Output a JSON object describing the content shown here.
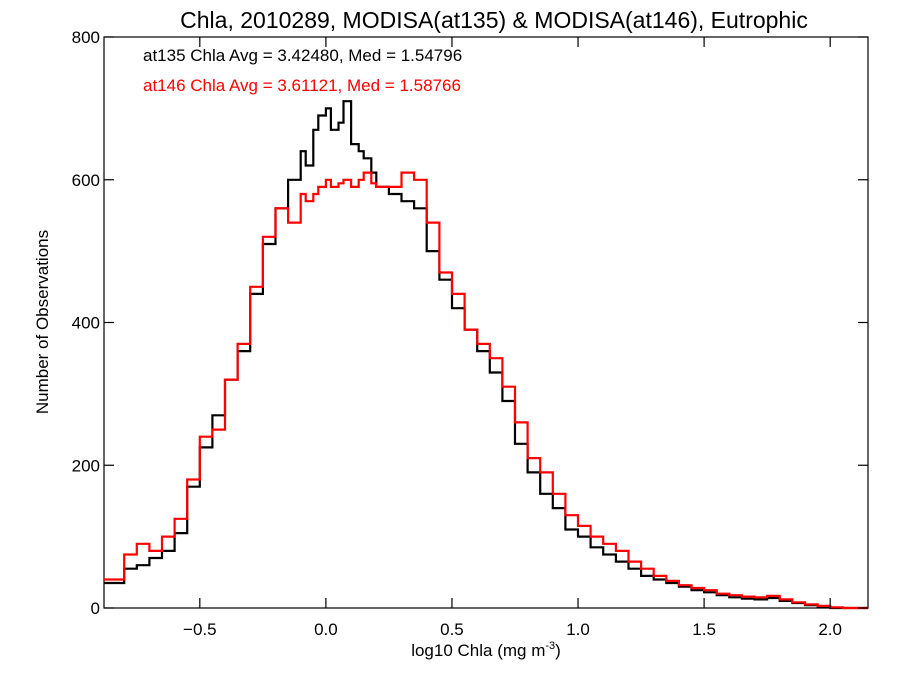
{
  "chart_data": {
    "type": "histogram",
    "title": "Chla, 2010289, MODISA(at135) & MODISA(at146), Eutrophic",
    "xlabel": "log10 Chla (mg m",
    "xlabel_sup": "-3",
    "xlabel_close": ")",
    "ylabel": "Number of Observations",
    "xlim": [
      -0.88,
      2.15
    ],
    "ylim": [
      0,
      800
    ],
    "grid": false,
    "xticks": [
      -0.5,
      0.0,
      0.5,
      1.0,
      1.5,
      2.0
    ],
    "xtick_labels": [
      "−0.5",
      "0.0",
      "0.5",
      "1.0",
      "1.5",
      "2.0"
    ],
    "yticks": [
      0,
      200,
      400,
      600,
      800
    ],
    "ytick_labels": [
      "0",
      "200",
      "400",
      "600",
      "800"
    ],
    "annotations": [
      {
        "text": "at135 Chla Avg = 3.42480, Med = 1.54796",
        "color": "#000000"
      },
      {
        "text": "at146 Chla Avg = 3.61121, Med = 1.58766",
        "color": "#ff0000"
      }
    ],
    "series": [
      {
        "color": "#000000",
        "x": [
          -0.88,
          -0.8,
          -0.75,
          -0.7,
          -0.65,
          -0.6,
          -0.55,
          -0.5,
          -0.45,
          -0.4,
          -0.35,
          -0.3,
          -0.25,
          -0.2,
          -0.15,
          -0.1,
          -0.08,
          -0.05,
          -0.03,
          0.0,
          0.02,
          0.05,
          0.07,
          0.1,
          0.13,
          0.15,
          0.18,
          0.2,
          0.25,
          0.3,
          0.35,
          0.4,
          0.45,
          0.5,
          0.55,
          0.6,
          0.65,
          0.7,
          0.75,
          0.8,
          0.85,
          0.9,
          0.95,
          1.0,
          1.05,
          1.1,
          1.15,
          1.2,
          1.25,
          1.3,
          1.35,
          1.4,
          1.45,
          1.5,
          1.55,
          1.6,
          1.65,
          1.7,
          1.75,
          1.8,
          1.85,
          1.9,
          1.95,
          2.0,
          2.05,
          2.1
        ],
        "y": [
          35,
          55,
          60,
          70,
          80,
          105,
          170,
          225,
          270,
          320,
          360,
          440,
          510,
          560,
          600,
          640,
          620,
          670,
          690,
          700,
          670,
          680,
          710,
          650,
          640,
          630,
          610,
          590,
          580,
          570,
          560,
          500,
          460,
          420,
          390,
          360,
          330,
          290,
          230,
          190,
          160,
          140,
          110,
          100,
          85,
          75,
          65,
          55,
          45,
          40,
          35,
          30,
          25,
          22,
          18,
          15,
          13,
          12,
          14,
          10,
          7,
          4,
          2,
          0,
          0,
          0
        ]
      },
      {
        "color": "#ff0000",
        "x": [
          -0.88,
          -0.8,
          -0.75,
          -0.7,
          -0.65,
          -0.6,
          -0.55,
          -0.5,
          -0.45,
          -0.4,
          -0.35,
          -0.3,
          -0.25,
          -0.2,
          -0.15,
          -0.1,
          -0.08,
          -0.05,
          -0.03,
          0.0,
          0.02,
          0.05,
          0.07,
          0.1,
          0.13,
          0.15,
          0.18,
          0.2,
          0.25,
          0.3,
          0.35,
          0.4,
          0.45,
          0.5,
          0.55,
          0.6,
          0.65,
          0.7,
          0.75,
          0.8,
          0.85,
          0.9,
          0.95,
          1.0,
          1.05,
          1.1,
          1.15,
          1.2,
          1.25,
          1.3,
          1.35,
          1.4,
          1.45,
          1.5,
          1.55,
          1.6,
          1.65,
          1.7,
          1.75,
          1.8,
          1.85,
          1.9,
          1.95,
          2.0,
          2.05,
          2.1
        ],
        "y": [
          40,
          75,
          90,
          80,
          100,
          125,
          180,
          240,
          250,
          320,
          370,
          450,
          520,
          560,
          540,
          580,
          570,
          580,
          590,
          600,
          590,
          595,
          600,
          590,
          600,
          610,
          595,
          590,
          590,
          610,
          600,
          540,
          470,
          440,
          390,
          370,
          350,
          310,
          260,
          210,
          190,
          160,
          130,
          115,
          100,
          90,
          80,
          65,
          55,
          45,
          38,
          32,
          28,
          25,
          20,
          18,
          16,
          15,
          17,
          12,
          8,
          5,
          3,
          1,
          0,
          0
        ]
      }
    ]
  }
}
